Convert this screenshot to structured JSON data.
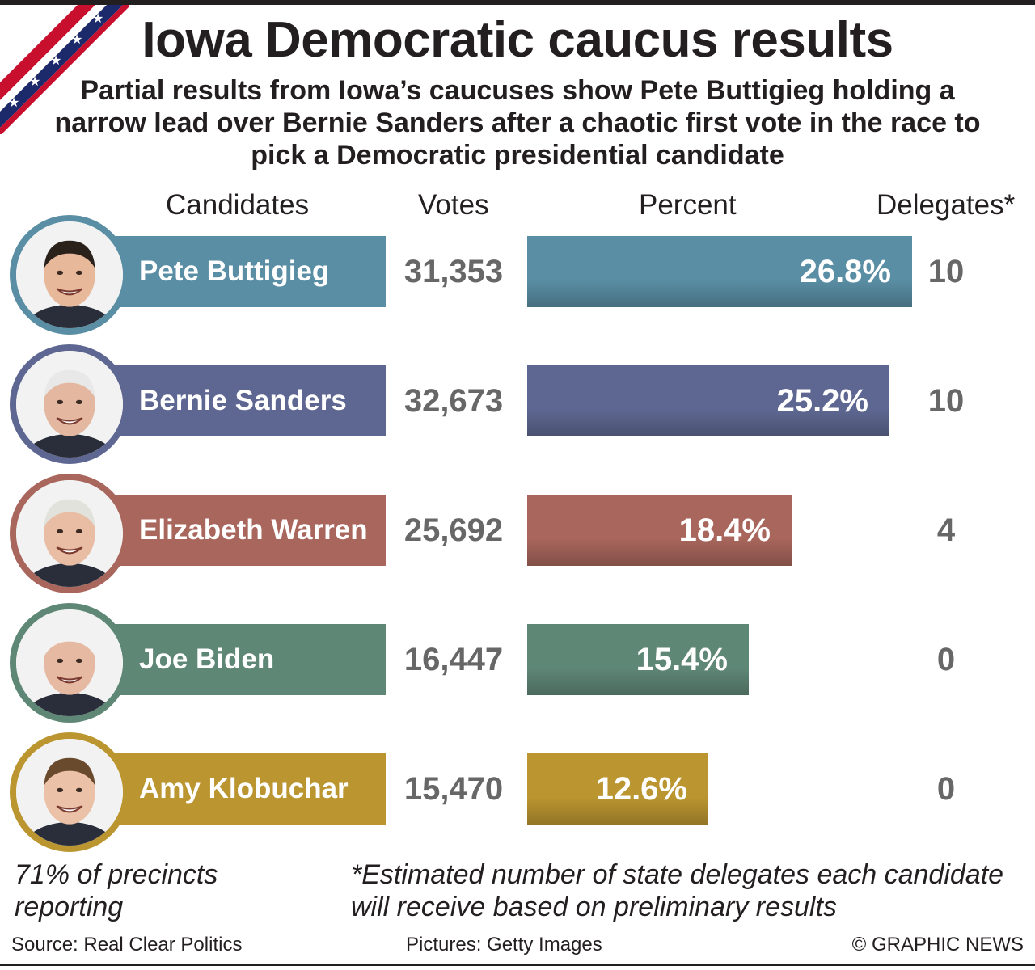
{
  "title": "Iowa Democratic caucus results",
  "subtitle": "Partial results from Iowa’s caucuses show Pete Buttigieg holding a narrow lead over Bernie Sanders after a chaotic first vote in the race to pick a Democratic presidential candidate",
  "columns": {
    "candidates": "Candidates",
    "votes": "Votes",
    "percent": "Percent",
    "delegates": "Delegates*"
  },
  "chart_data": {
    "type": "bar",
    "orientation": "horizontal",
    "categories": [
      "Pete Buttigieg",
      "Bernie Sanders",
      "Elizabeth Warren",
      "Joe Biden",
      "Amy Klobuchar"
    ],
    "values": [
      26.8,
      25.2,
      18.4,
      15.4,
      12.6
    ],
    "percent_labels": [
      "26.8%",
      "25.2%",
      "18.4%",
      "15.4%",
      "12.6%"
    ],
    "votes": [
      "31,353",
      "32,673",
      "25,692",
      "16,447",
      "15,470"
    ],
    "delegates": [
      "10",
      "10",
      "4",
      "0",
      "0"
    ],
    "colors": [
      "#5a8ea4",
      "#5e6791",
      "#a8665c",
      "#5f8776",
      "#bb9630"
    ],
    "xlim": [
      0,
      26.8
    ]
  },
  "notes": {
    "precincts": "71% of precincts reporting",
    "delegates_note": "*Estimated number of state delegates each candidate will receive based on preliminary results"
  },
  "footer": {
    "source": "Source: Real Clear Politics",
    "pictures": "Pictures: Getty Images",
    "copyright": "© GRAPHIC NEWS"
  },
  "icons": {
    "flag": "us-flag-ribbon-icon",
    "portraits": [
      "pete-buttigieg-portrait",
      "bernie-sanders-portrait",
      "elizabeth-warren-portrait",
      "joe-biden-portrait",
      "amy-klobuchar-portrait"
    ]
  }
}
